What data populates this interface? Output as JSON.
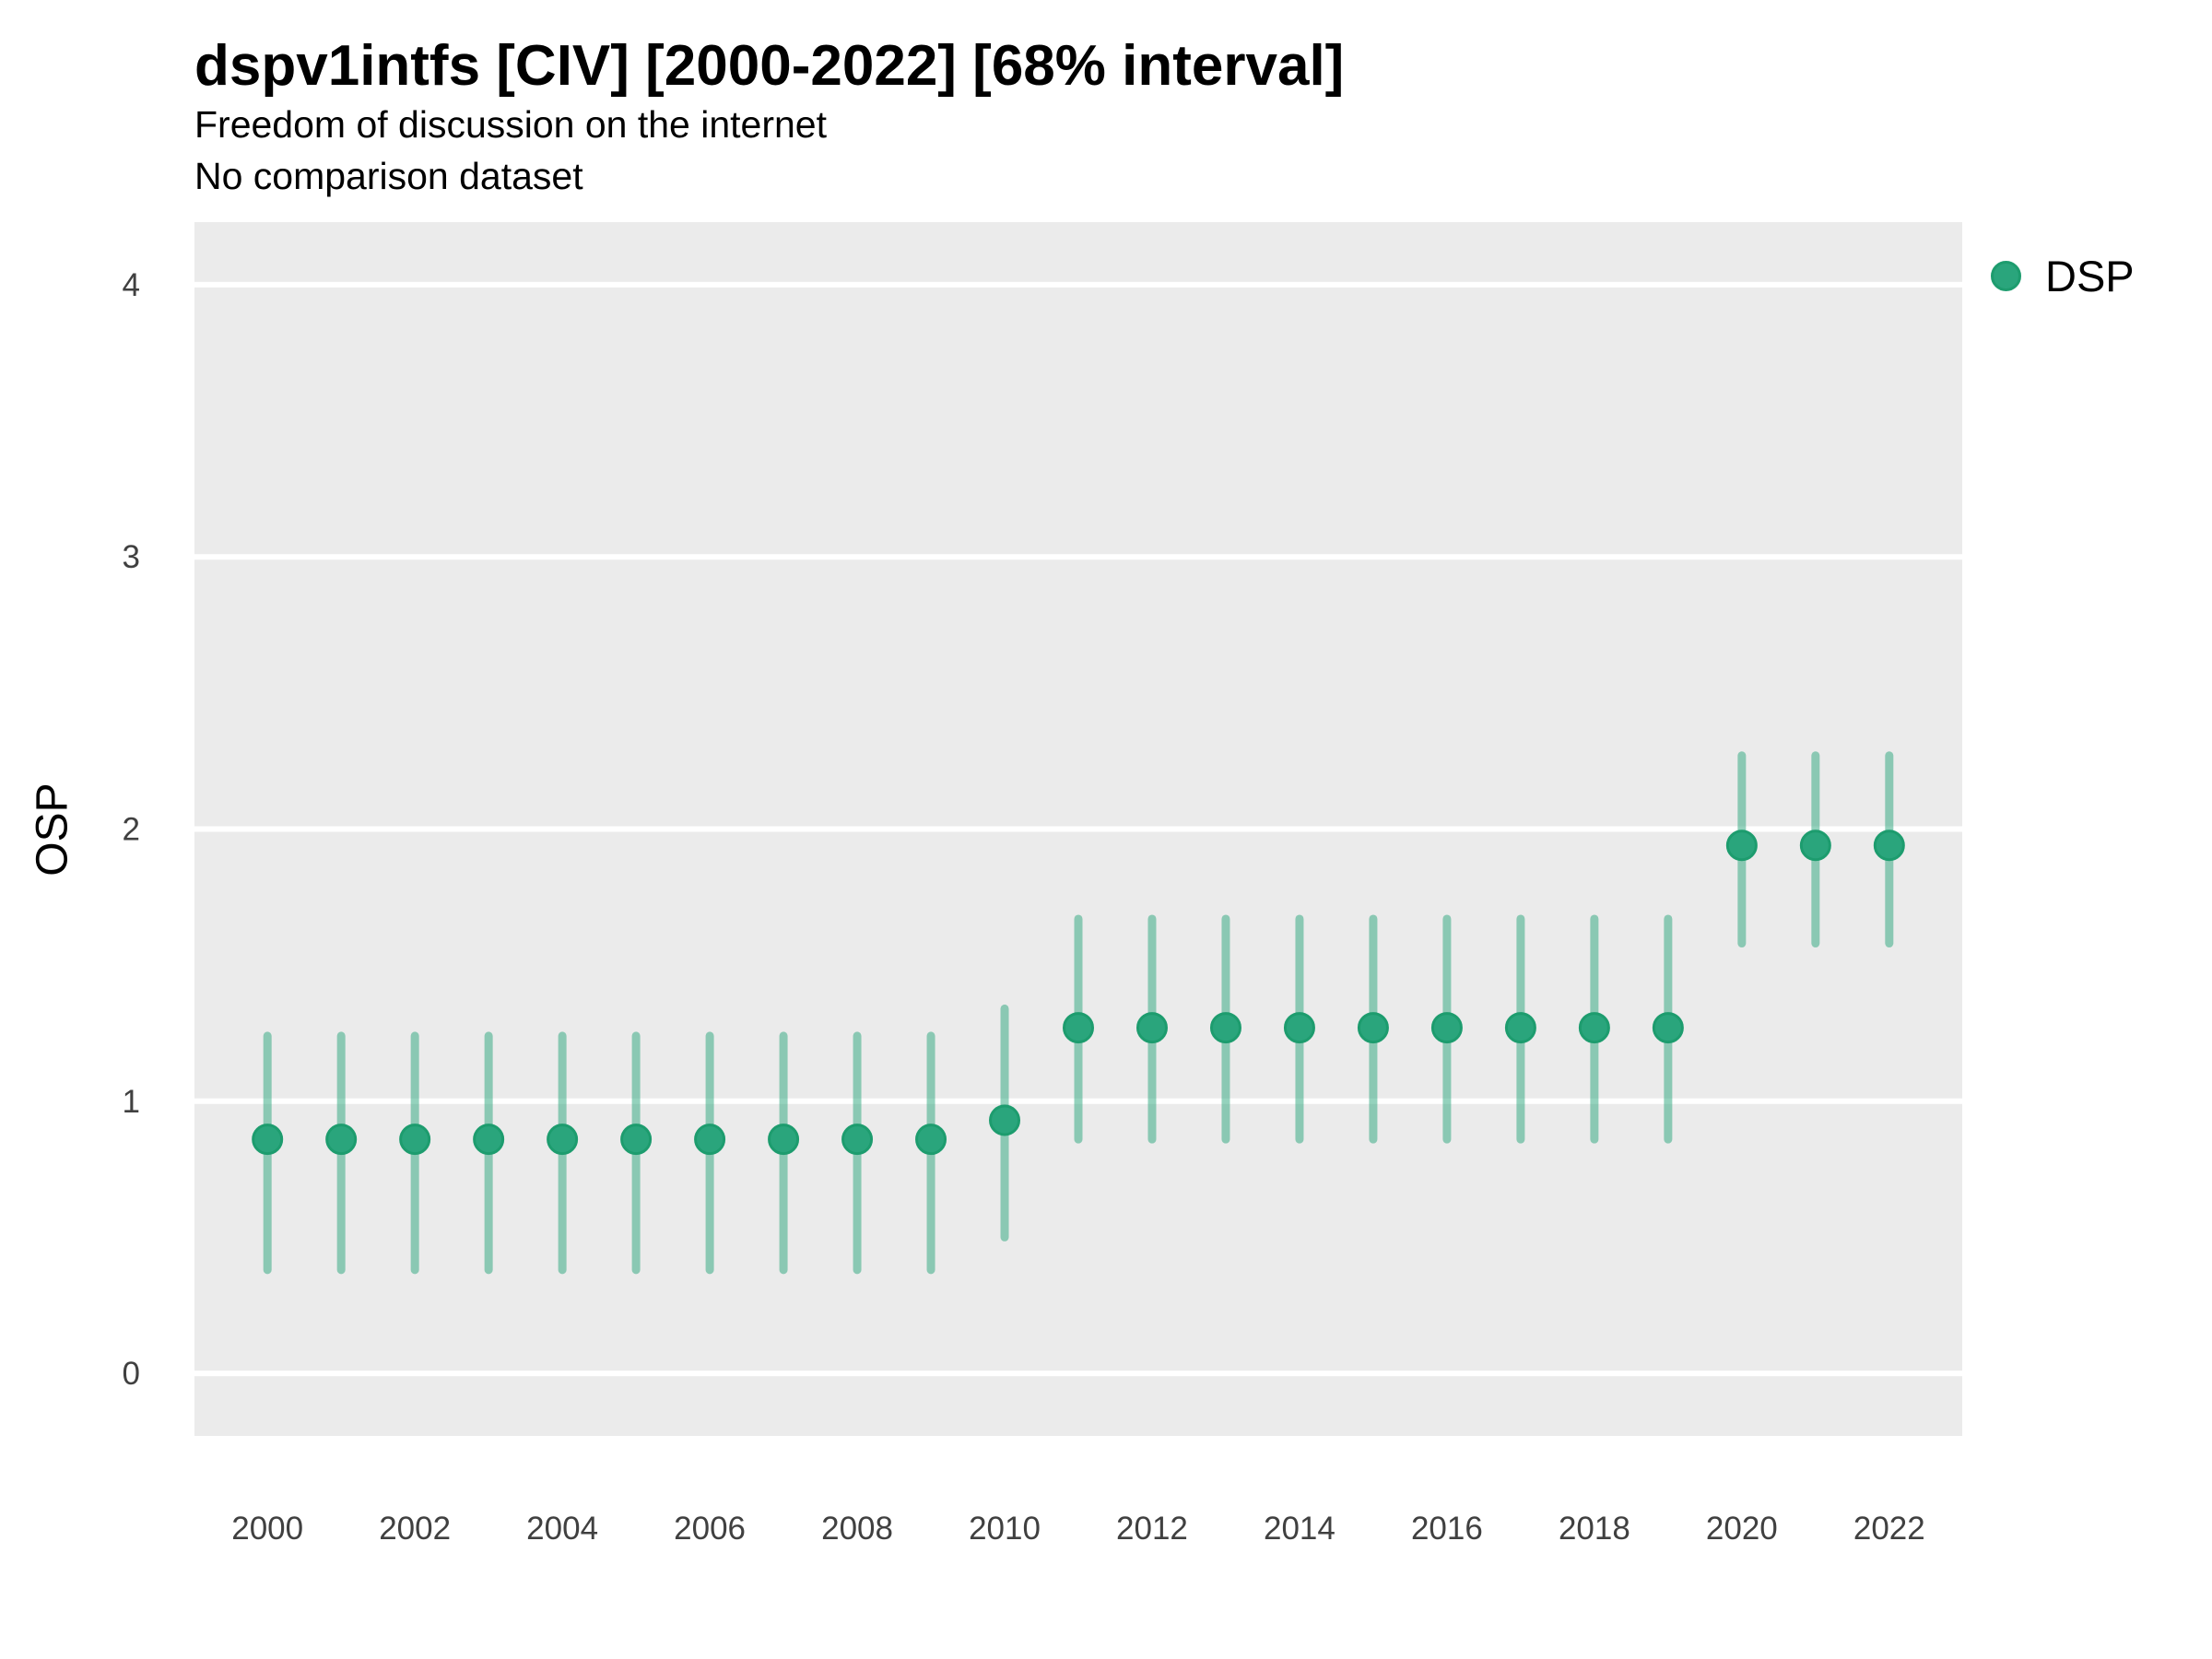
{
  "header": {
    "title": "dspv1intfs [CIV] [2000-2022] [68% interval]",
    "subtitle": "Freedom of discussion on the internet",
    "comparison_note": "No comparison dataset"
  },
  "legend": {
    "position": "right-top",
    "items": [
      {
        "label": "DSP",
        "marker": "circle-icon"
      }
    ]
  },
  "colors": {
    "point_fill": "#2aa57c",
    "point_stroke": "#1d9c6e",
    "interval_stroke": "rgba(42,165,124,0.5)",
    "panel_bg": "#ebebeb",
    "grid": "#ffffff",
    "tick_text": "#404040",
    "text": "#000000"
  },
  "chart_data": {
    "type": "scatter",
    "subtype": "pointrange",
    "title": "dspv1intfs [CIV] [2000-2022] [68% interval]",
    "subtitle": "Freedom of discussion on the internet",
    "note": "No comparison dataset",
    "interval": "68%",
    "xlabel": "",
    "ylabel": "OSP",
    "xlim": [
      1999.01,
      2022.99
    ],
    "ylim": [
      -0.23,
      4.23
    ],
    "x_ticks": [
      2000,
      2002,
      2004,
      2006,
      2008,
      2010,
      2012,
      2014,
      2016,
      2018,
      2020,
      2022
    ],
    "y_ticks": [
      0,
      1,
      2,
      3,
      4
    ],
    "grid": "major-horizontal-only",
    "legend_position": "right-top",
    "series": [
      {
        "name": "DSP",
        "points": [
          {
            "year": 2000,
            "est": 0.86,
            "lo": 0.38,
            "hi": 1.24
          },
          {
            "year": 2001,
            "est": 0.86,
            "lo": 0.38,
            "hi": 1.24
          },
          {
            "year": 2002,
            "est": 0.86,
            "lo": 0.38,
            "hi": 1.24
          },
          {
            "year": 2003,
            "est": 0.86,
            "lo": 0.38,
            "hi": 1.24
          },
          {
            "year": 2004,
            "est": 0.86,
            "lo": 0.38,
            "hi": 1.24
          },
          {
            "year": 2005,
            "est": 0.86,
            "lo": 0.38,
            "hi": 1.24
          },
          {
            "year": 2006,
            "est": 0.86,
            "lo": 0.38,
            "hi": 1.24
          },
          {
            "year": 2007,
            "est": 0.86,
            "lo": 0.38,
            "hi": 1.24
          },
          {
            "year": 2008,
            "est": 0.86,
            "lo": 0.38,
            "hi": 1.24
          },
          {
            "year": 2009,
            "est": 0.86,
            "lo": 0.38,
            "hi": 1.24
          },
          {
            "year": 2010,
            "est": 0.93,
            "lo": 0.5,
            "hi": 1.34
          },
          {
            "year": 2011,
            "est": 1.27,
            "lo": 0.86,
            "hi": 1.67
          },
          {
            "year": 2012,
            "est": 1.27,
            "lo": 0.86,
            "hi": 1.67
          },
          {
            "year": 2013,
            "est": 1.27,
            "lo": 0.86,
            "hi": 1.67
          },
          {
            "year": 2014,
            "est": 1.27,
            "lo": 0.86,
            "hi": 1.67
          },
          {
            "year": 2015,
            "est": 1.27,
            "lo": 0.86,
            "hi": 1.67
          },
          {
            "year": 2016,
            "est": 1.27,
            "lo": 0.86,
            "hi": 1.67
          },
          {
            "year": 2017,
            "est": 1.27,
            "lo": 0.86,
            "hi": 1.67
          },
          {
            "year": 2018,
            "est": 1.27,
            "lo": 0.86,
            "hi": 1.67
          },
          {
            "year": 2019,
            "est": 1.27,
            "lo": 0.86,
            "hi": 1.67
          },
          {
            "year": 2020,
            "est": 1.94,
            "lo": 1.58,
            "hi": 2.27
          },
          {
            "year": 2021,
            "est": 1.94,
            "lo": 1.58,
            "hi": 2.27
          },
          {
            "year": 2022,
            "est": 1.94,
            "lo": 1.58,
            "hi": 2.27
          }
        ]
      }
    ]
  }
}
